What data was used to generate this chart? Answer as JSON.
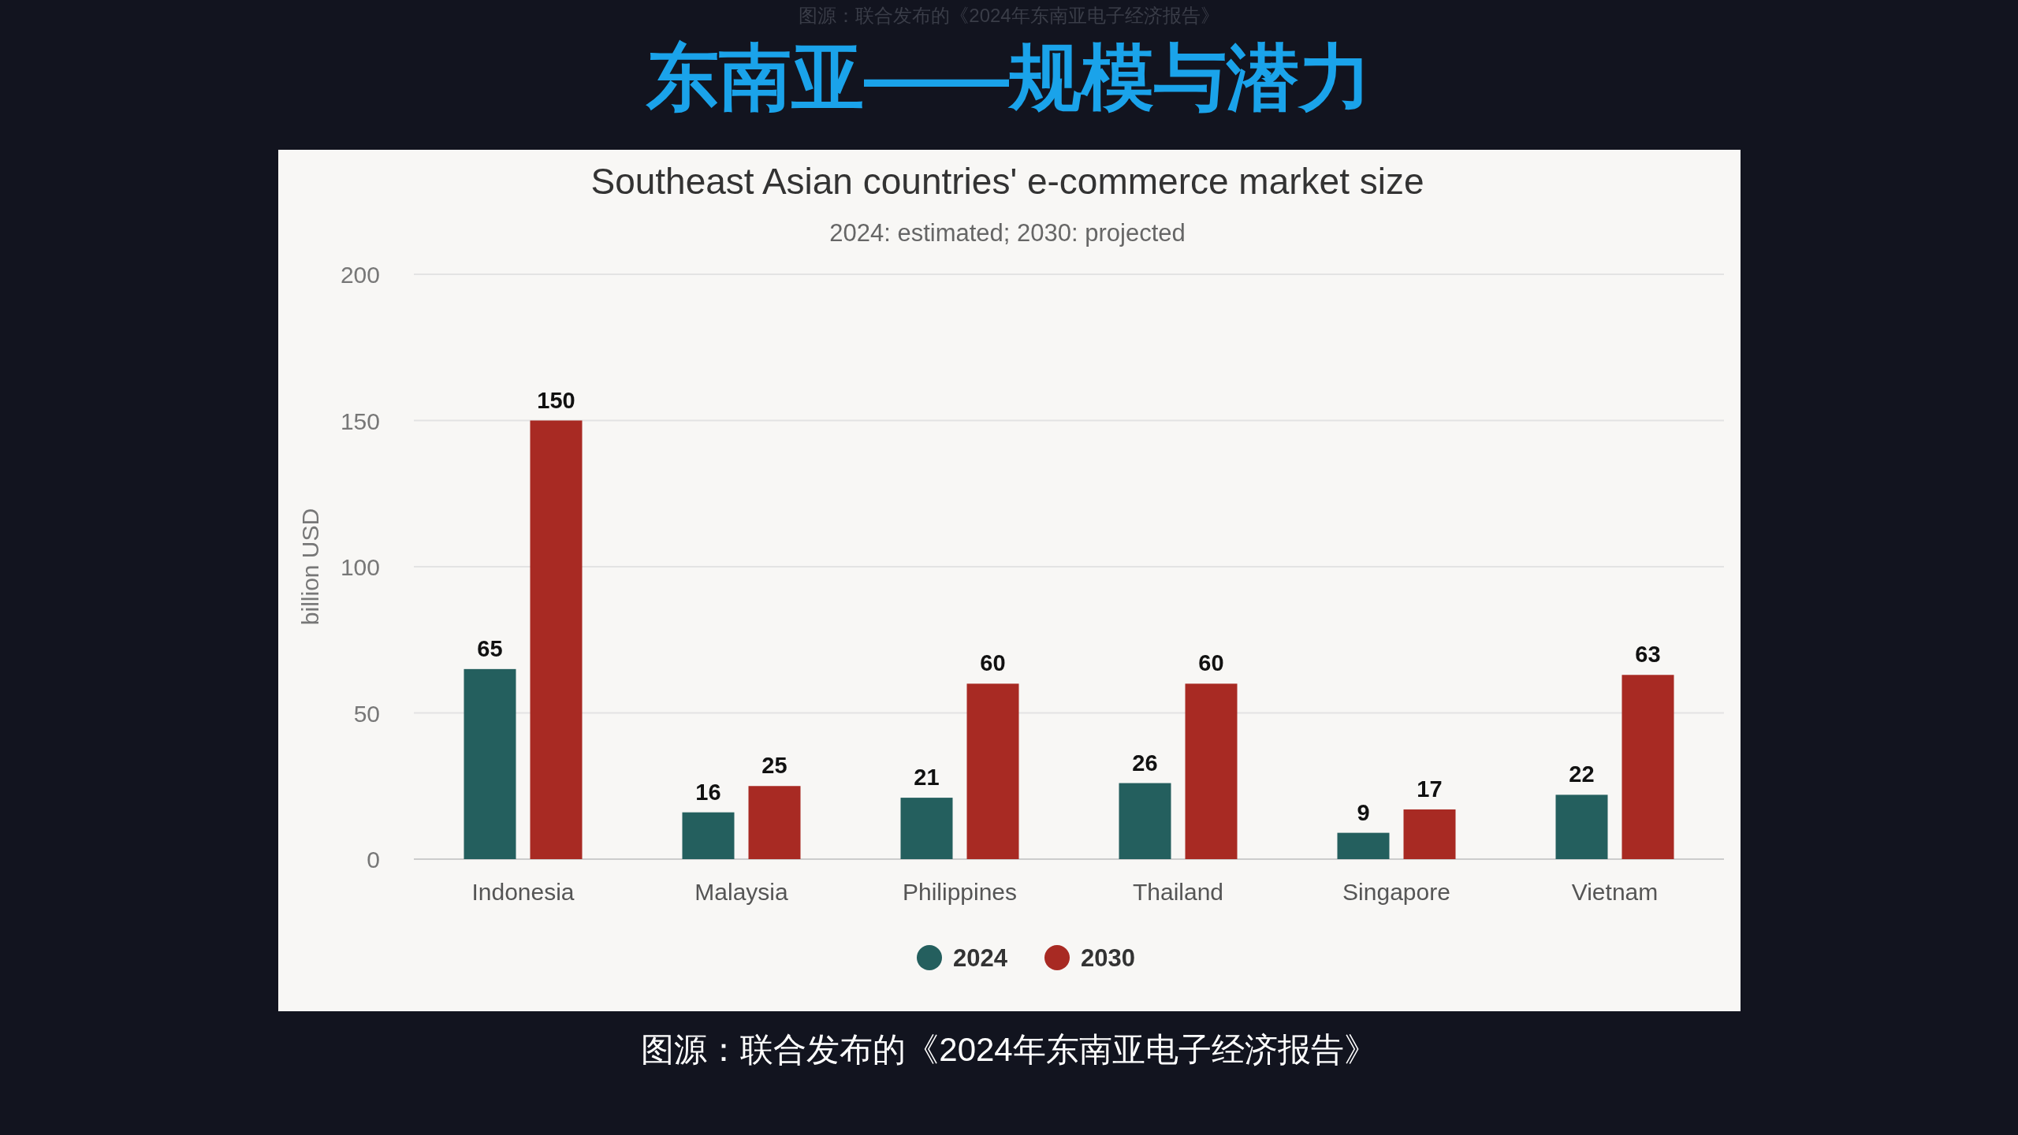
{
  "chart_data": {
    "type": "bar",
    "title": "Southeast Asian countries' e-commerce market size",
    "subtitle": "2024: estimated; 2030: projected",
    "ylabel": "billion USD",
    "annotations": [
      "图源：联合发布的《2024年东南亚电子经济报告》",
      "东南亚——规模与潜力",
      "图源：联合发布的《2024年东南亚电子经济报告》"
    ],
    "categories": [
      "Indonesia",
      "Malaysia",
      "Philippines",
      "Thailand",
      "Singapore",
      "Vietnam"
    ],
    "series": [
      {
        "name": "2024",
        "color": "#245f5e",
        "values": [
          65,
          16,
          21,
          26,
          9,
          22
        ]
      },
      {
        "name": "2030",
        "color": "#a82a23",
        "values": [
          150,
          25,
          60,
          60,
          17,
          63
        ]
      }
    ],
    "ylim": [
      0,
      200
    ],
    "yticks": [
      0,
      50,
      100,
      150,
      200
    ],
    "grid": "y",
    "legend": "bottom",
    "data_labels": true
  }
}
